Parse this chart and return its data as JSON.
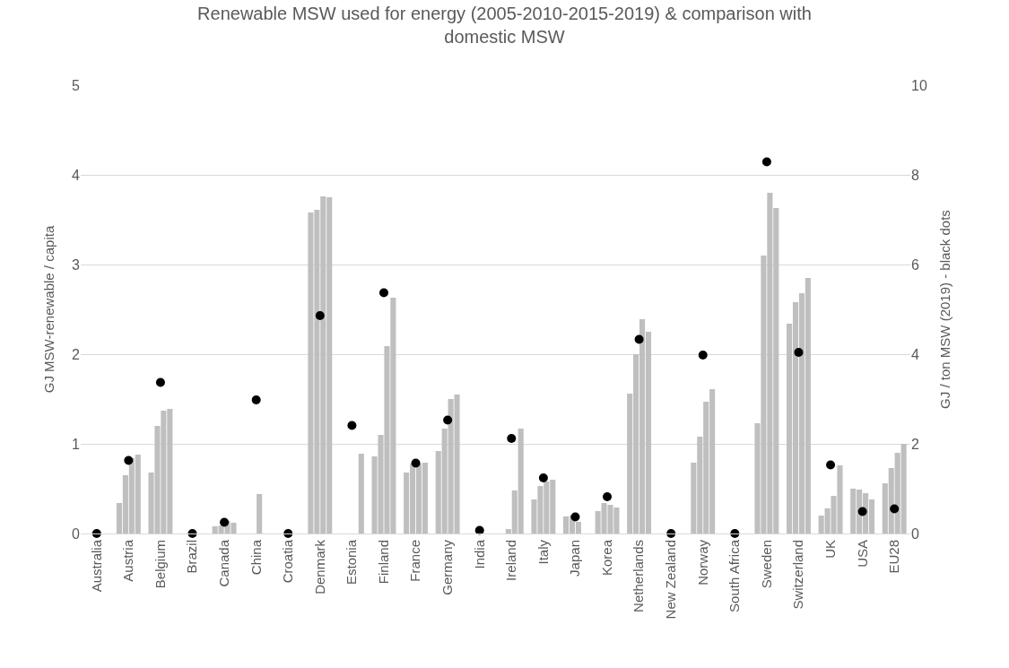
{
  "chart_data": {
    "type": "bar",
    "title": "Renewable MSW used for energy (2005-2010-2015-2019) & comparison with domestic MSW",
    "ylabel": "GJ MSW-renewable / capita",
    "y2label": "GJ / ton MSW (2019) - black dots",
    "categories": [
      "Australia",
      "Austria",
      "Belgium",
      "Brazil",
      "Canada",
      "China",
      "Croatia",
      "Denmark",
      "Estonia",
      "Finland",
      "France",
      "Germany",
      "India",
      "Ireland",
      "Italy",
      "Japan",
      "Korea",
      "Netherlands",
      "New Zealand",
      "Norway",
      "South Africa",
      "Sweden",
      "Switzerland",
      "UK",
      "USA",
      "EU28"
    ],
    "series": [
      {
        "color": "#bfbfbf",
        "values": [
          null,
          0.34,
          0.68,
          null,
          0.08,
          null,
          null,
          3.58,
          null,
          0.86,
          0.68,
          0.92,
          null,
          null,
          0.38,
          0.19,
          0.25,
          1.56,
          null,
          0.79,
          null,
          1.23,
          2.34,
          0.2,
          0.5,
          0.56
        ]
      },
      {
        "color": "#bfbfbf",
        "values": [
          null,
          0.65,
          1.2,
          null,
          0.09,
          null,
          null,
          3.61,
          null,
          1.1,
          0.78,
          1.17,
          null,
          0.05,
          0.53,
          0.2,
          0.34,
          2.0,
          null,
          1.08,
          null,
          3.1,
          2.58,
          0.28,
          0.49,
          0.73
        ]
      },
      {
        "color": "#bfbfbf",
        "values": [
          null,
          0.84,
          1.37,
          null,
          0.14,
          0.44,
          null,
          3.76,
          null,
          2.09,
          0.78,
          1.5,
          null,
          0.48,
          0.58,
          0.13,
          0.32,
          2.39,
          null,
          1.47,
          null,
          3.8,
          2.68,
          0.42,
          0.45,
          0.9
        ]
      },
      {
        "color": "#bfbfbf",
        "values": [
          null,
          0.88,
          1.39,
          null,
          0.12,
          null,
          null,
          3.75,
          0.89,
          2.63,
          0.79,
          1.55,
          null,
          1.17,
          0.6,
          null,
          0.29,
          2.25,
          null,
          1.61,
          null,
          3.63,
          2.85,
          0.76,
          0.38,
          1.0
        ]
      },
      {
        "type": "scatter",
        "axis": "y2",
        "color": "#000000",
        "values": [
          0,
          1.63,
          3.37,
          0,
          0.25,
          2.98,
          0,
          4.86,
          2.41,
          5.37,
          1.57,
          2.53,
          0.07,
          2.12,
          1.24,
          0.37,
          0.82,
          4.33,
          0,
          3.98,
          0,
          8.29,
          4.04,
          1.53,
          0.49,
          0.55
        ]
      }
    ],
    "ylim": [
      0,
      5
    ],
    "yticks": [
      0,
      1,
      2,
      3,
      4,
      5
    ],
    "y2lim": [
      0,
      10
    ],
    "y2ticks": [
      0,
      2,
      4,
      6,
      8,
      10
    ],
    "grid": "y",
    "marker": "circle"
  }
}
